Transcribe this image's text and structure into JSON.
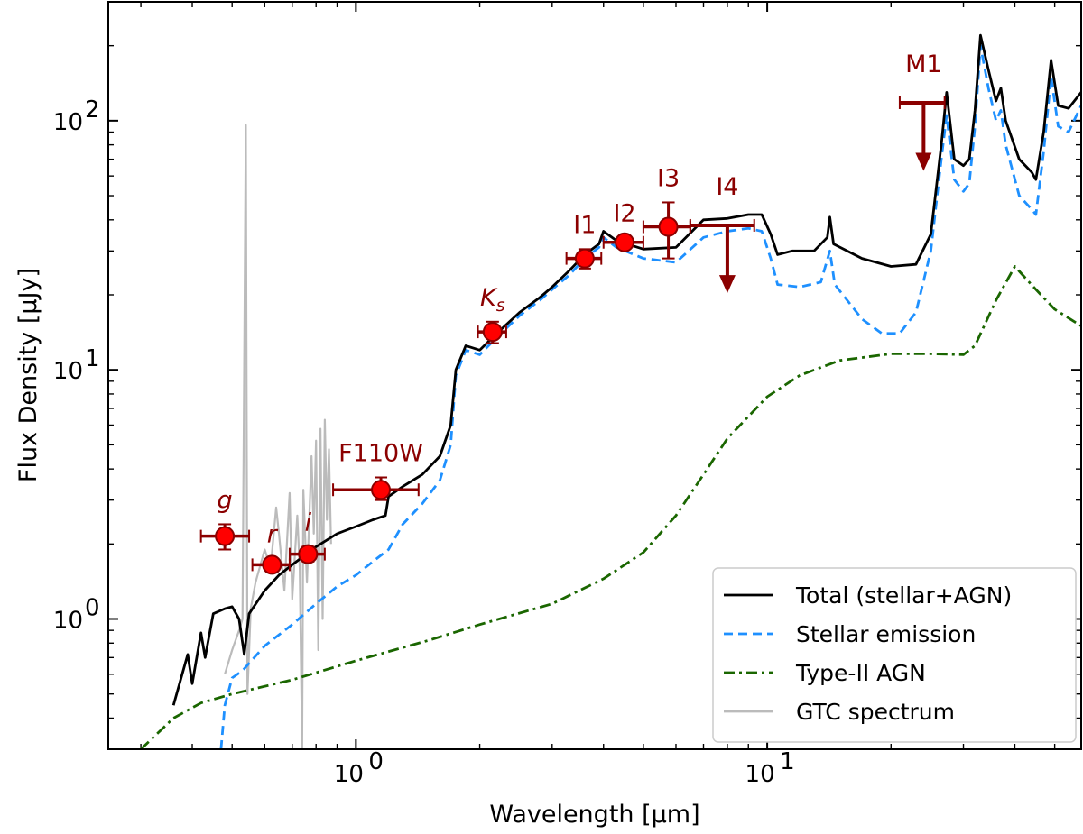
{
  "chart_data": {
    "type": "line",
    "xlabel": "Wavelength [μm]",
    "ylabel": "Flux Density [μJy]",
    "xscale": "log",
    "yscale": "log",
    "xlim": [
      0.25,
      58
    ],
    "ylim": [
      0.3,
      300
    ],
    "x_ticks": [
      {
        "value": 1,
        "base": "10",
        "exp": "0"
      },
      {
        "value": 10,
        "base": "10",
        "exp": "1"
      }
    ],
    "y_ticks": [
      {
        "value": 1,
        "base": "10",
        "exp": "0"
      },
      {
        "value": 10,
        "base": "10",
        "exp": "1"
      },
      {
        "value": 100,
        "base": "10",
        "exp": "2"
      }
    ],
    "series": [
      {
        "name": "Total (stellar+AGN)",
        "color": "#000000",
        "dash": "solid",
        "points": [
          [
            0.36,
            0.45
          ],
          [
            0.39,
            0.72
          ],
          [
            0.4,
            0.55
          ],
          [
            0.42,
            0.88
          ],
          [
            0.43,
            0.7
          ],
          [
            0.45,
            1.05
          ],
          [
            0.48,
            1.1
          ],
          [
            0.5,
            1.12
          ],
          [
            0.52,
            1.0
          ],
          [
            0.535,
            0.72
          ],
          [
            0.55,
            1.05
          ],
          [
            0.6,
            1.3
          ],
          [
            0.65,
            1.5
          ],
          [
            0.7,
            1.65
          ],
          [
            0.8,
            1.95
          ],
          [
            0.9,
            2.2
          ],
          [
            1.0,
            2.35
          ],
          [
            1.1,
            2.5
          ],
          [
            1.18,
            2.6
          ],
          [
            1.2,
            3.1
          ],
          [
            1.3,
            3.4
          ],
          [
            1.45,
            3.8
          ],
          [
            1.6,
            4.5
          ],
          [
            1.7,
            6.0
          ],
          [
            1.75,
            10.0
          ],
          [
            1.85,
            12.5
          ],
          [
            2.0,
            12.0
          ],
          [
            2.2,
            14.0
          ],
          [
            2.5,
            17.0
          ],
          [
            2.8,
            19.5
          ],
          [
            3.0,
            21.5
          ],
          [
            3.3,
            25.0
          ],
          [
            3.6,
            29.0
          ],
          [
            3.9,
            32.0
          ],
          [
            4.0,
            36.0
          ],
          [
            4.3,
            33.0
          ],
          [
            5.0,
            30.5
          ],
          [
            6.0,
            31.0
          ],
          [
            7.0,
            40.0
          ],
          [
            8.0,
            40.5
          ],
          [
            9.0,
            42.0
          ],
          [
            9.7,
            42.0
          ],
          [
            10.2,
            35.0
          ],
          [
            10.6,
            29.0
          ],
          [
            11.5,
            30.0
          ],
          [
            13.0,
            30.0
          ],
          [
            14.0,
            34.0
          ],
          [
            14.2,
            41.0
          ],
          [
            14.5,
            32.0
          ],
          [
            17.0,
            28.0
          ],
          [
            20.0,
            26.0
          ],
          [
            23.0,
            26.5
          ],
          [
            25.0,
            35.0
          ],
          [
            26.5,
            80.0
          ],
          [
            27.3,
            130.0
          ],
          [
            28.5,
            70.0
          ],
          [
            30.0,
            66.0
          ],
          [
            31.0,
            70.0
          ],
          [
            32.0,
            110.0
          ],
          [
            33.0,
            220.0
          ],
          [
            34.5,
            160.0
          ],
          [
            36.0,
            120.0
          ],
          [
            37.0,
            135.0
          ],
          [
            38.0,
            100.0
          ],
          [
            41.0,
            70.0
          ],
          [
            44.0,
            62.0
          ],
          [
            45.0,
            58.0
          ],
          [
            47.0,
            90.0
          ],
          [
            49.0,
            175.0
          ],
          [
            51.0,
            115.0
          ],
          [
            54.0,
            112.0
          ],
          [
            58.0,
            130.0
          ]
        ]
      },
      {
        "name": "Stellar emission",
        "color": "#1e90ff",
        "dash": "dashed",
        "points": [
          [
            0.47,
            0.3
          ],
          [
            0.48,
            0.45
          ],
          [
            0.5,
            0.58
          ],
          [
            0.53,
            0.62
          ],
          [
            0.6,
            0.78
          ],
          [
            0.7,
            0.95
          ],
          [
            0.8,
            1.15
          ],
          [
            0.9,
            1.35
          ],
          [
            1.0,
            1.5
          ],
          [
            1.1,
            1.7
          ],
          [
            1.2,
            1.9
          ],
          [
            1.3,
            2.4
          ],
          [
            1.45,
            2.9
          ],
          [
            1.6,
            3.6
          ],
          [
            1.7,
            5.0
          ],
          [
            1.75,
            9.5
          ],
          [
            1.85,
            12.0
          ],
          [
            2.0,
            11.5
          ],
          [
            2.2,
            13.5
          ],
          [
            2.5,
            16.5
          ],
          [
            2.8,
            19.0
          ],
          [
            3.0,
            21.0
          ],
          [
            3.3,
            24.0
          ],
          [
            3.6,
            28.0
          ],
          [
            3.9,
            31.0
          ],
          [
            4.0,
            34.0
          ],
          [
            4.3,
            31.0
          ],
          [
            5.0,
            28.0
          ],
          [
            6.0,
            27.0
          ],
          [
            7.0,
            34.0
          ],
          [
            8.0,
            36.0
          ],
          [
            9.0,
            37.0
          ],
          [
            9.7,
            36.0
          ],
          [
            10.2,
            28.0
          ],
          [
            10.6,
            22.0
          ],
          [
            12.0,
            21.5
          ],
          [
            13.5,
            22.5
          ],
          [
            14.2,
            30.0
          ],
          [
            14.6,
            22.0
          ],
          [
            17.0,
            16.0
          ],
          [
            19.0,
            14.0
          ],
          [
            21.0,
            14.0
          ],
          [
            23.0,
            17.0
          ],
          [
            25.0,
            30.0
          ],
          [
            26.5,
            70.0
          ],
          [
            27.3,
            105.0
          ],
          [
            28.5,
            58.0
          ],
          [
            30.0,
            52.0
          ],
          [
            31.0,
            56.0
          ],
          [
            32.0,
            95.0
          ],
          [
            33.0,
            200.0
          ],
          [
            34.5,
            135.0
          ],
          [
            36.0,
            100.0
          ],
          [
            37.0,
            110.0
          ],
          [
            38.0,
            80.0
          ],
          [
            41.0,
            50.0
          ],
          [
            44.0,
            44.0
          ],
          [
            45.0,
            42.0
          ],
          [
            47.0,
            75.0
          ],
          [
            49.0,
            150.0
          ],
          [
            51.0,
            95.0
          ],
          [
            54.0,
            90.0
          ],
          [
            58.0,
            115.0
          ]
        ]
      },
      {
        "name": "Type-II AGN",
        "color": "#1a6600",
        "dash": "dashdot",
        "points": [
          [
            0.3,
            0.3
          ],
          [
            0.36,
            0.4
          ],
          [
            0.42,
            0.46
          ],
          [
            0.5,
            0.5
          ],
          [
            0.7,
            0.57
          ],
          [
            1.0,
            0.68
          ],
          [
            1.5,
            0.82
          ],
          [
            2.0,
            0.95
          ],
          [
            3.0,
            1.15
          ],
          [
            4.0,
            1.45
          ],
          [
            5.0,
            1.85
          ],
          [
            6.0,
            2.6
          ],
          [
            7.0,
            3.8
          ],
          [
            8.0,
            5.3
          ],
          [
            10.0,
            7.8
          ],
          [
            12.0,
            9.5
          ],
          [
            15.0,
            10.9
          ],
          [
            20.0,
            11.6
          ],
          [
            25.0,
            11.6
          ],
          [
            30.0,
            11.5
          ],
          [
            32.0,
            12.5
          ],
          [
            36.0,
            19.0
          ],
          [
            40.0,
            26.0
          ],
          [
            45.0,
            21.0
          ],
          [
            50.0,
            17.5
          ],
          [
            58.0,
            15.0
          ]
        ]
      },
      {
        "name": "GTC spectrum",
        "color": "#bbbbbb",
        "dash": "solid",
        "points": [
          [
            0.48,
            0.6
          ],
          [
            0.5,
            0.75
          ],
          [
            0.52,
            0.9
          ],
          [
            0.53,
            1.0
          ],
          [
            0.54,
            96.0
          ],
          [
            0.545,
            0.5
          ],
          [
            0.555,
            1.1
          ],
          [
            0.57,
            1.4
          ],
          [
            0.6,
            1.9
          ],
          [
            0.62,
            1.6
          ],
          [
            0.64,
            2.8
          ],
          [
            0.65,
            2.2
          ],
          [
            0.67,
            1.3
          ],
          [
            0.69,
            3.2
          ],
          [
            0.7,
            1.2
          ],
          [
            0.72,
            2.6
          ],
          [
            0.73,
            1.6
          ],
          [
            0.74,
            0.3
          ],
          [
            0.745,
            3.3
          ],
          [
            0.76,
            1.4
          ],
          [
            0.78,
            4.5
          ],
          [
            0.79,
            2.2
          ],
          [
            0.8,
            5.2
          ],
          [
            0.81,
            0.75
          ],
          [
            0.82,
            5.8
          ],
          [
            0.83,
            1.0
          ],
          [
            0.84,
            6.3
          ],
          [
            0.85,
            2.5
          ],
          [
            0.86,
            4.8
          ],
          [
            0.87,
            2.0
          ]
        ]
      }
    ],
    "photometry": [
      {
        "label": "g",
        "italic": true,
        "x": 0.48,
        "y": 2.15,
        "x_err": [
          0.42,
          0.55
        ],
        "y_err": [
          1.9,
          2.4
        ]
      },
      {
        "label": "r",
        "italic": true,
        "x": 0.625,
        "y": 1.65,
        "x_err": [
          0.56,
          0.69
        ],
        "y_err": [
          1.55,
          1.75
        ]
      },
      {
        "label": "i",
        "italic": true,
        "x": 0.765,
        "y": 1.82,
        "x_err": [
          0.69,
          0.84
        ],
        "y_err": [
          1.7,
          1.95
        ]
      },
      {
        "label": "F110W",
        "italic": false,
        "x": 1.15,
        "y": 3.3,
        "x_err": [
          0.88,
          1.42
        ],
        "y_err": [
          3.0,
          3.7
        ]
      },
      {
        "label": "K",
        "sub": "s",
        "italic": true,
        "x": 2.15,
        "y": 14.2,
        "x_err": [
          1.98,
          2.32
        ],
        "y_err": [
          12.8,
          15.6
        ]
      },
      {
        "label": "I1",
        "italic": false,
        "x": 3.6,
        "y": 28.0,
        "x_err": [
          3.25,
          3.95
        ],
        "y_err": [
          25.5,
          30.5
        ]
      },
      {
        "label": "I2",
        "italic": false,
        "x": 4.5,
        "y": 32.5,
        "x_err": [
          4.0,
          5.0
        ],
        "y_err": [
          31.0,
          34.0
        ]
      },
      {
        "label": "I3",
        "italic": false,
        "x": 5.75,
        "y": 37.5,
        "x_err": [
          5.0,
          6.5
        ],
        "y_err": [
          28.0,
          47.0
        ]
      }
    ],
    "upper_limits": [
      {
        "label": "I4",
        "x": 8.0,
        "y": 38.0,
        "x_err": [
          6.5,
          9.3
        ],
        "arrow_to": 21.0
      },
      {
        "label": "M1",
        "x": 24.0,
        "y": 118.0,
        "x_err": [
          21.0,
          27.0
        ],
        "arrow_to": 65.0
      }
    ],
    "marker_color": "#ff0000",
    "errorbar_color": "#8b0000",
    "legend": {
      "placement": "lower-right",
      "entries": [
        "Total (stellar+AGN)",
        "Stellar emission",
        "Type-II AGN",
        "GTC spectrum"
      ]
    }
  }
}
